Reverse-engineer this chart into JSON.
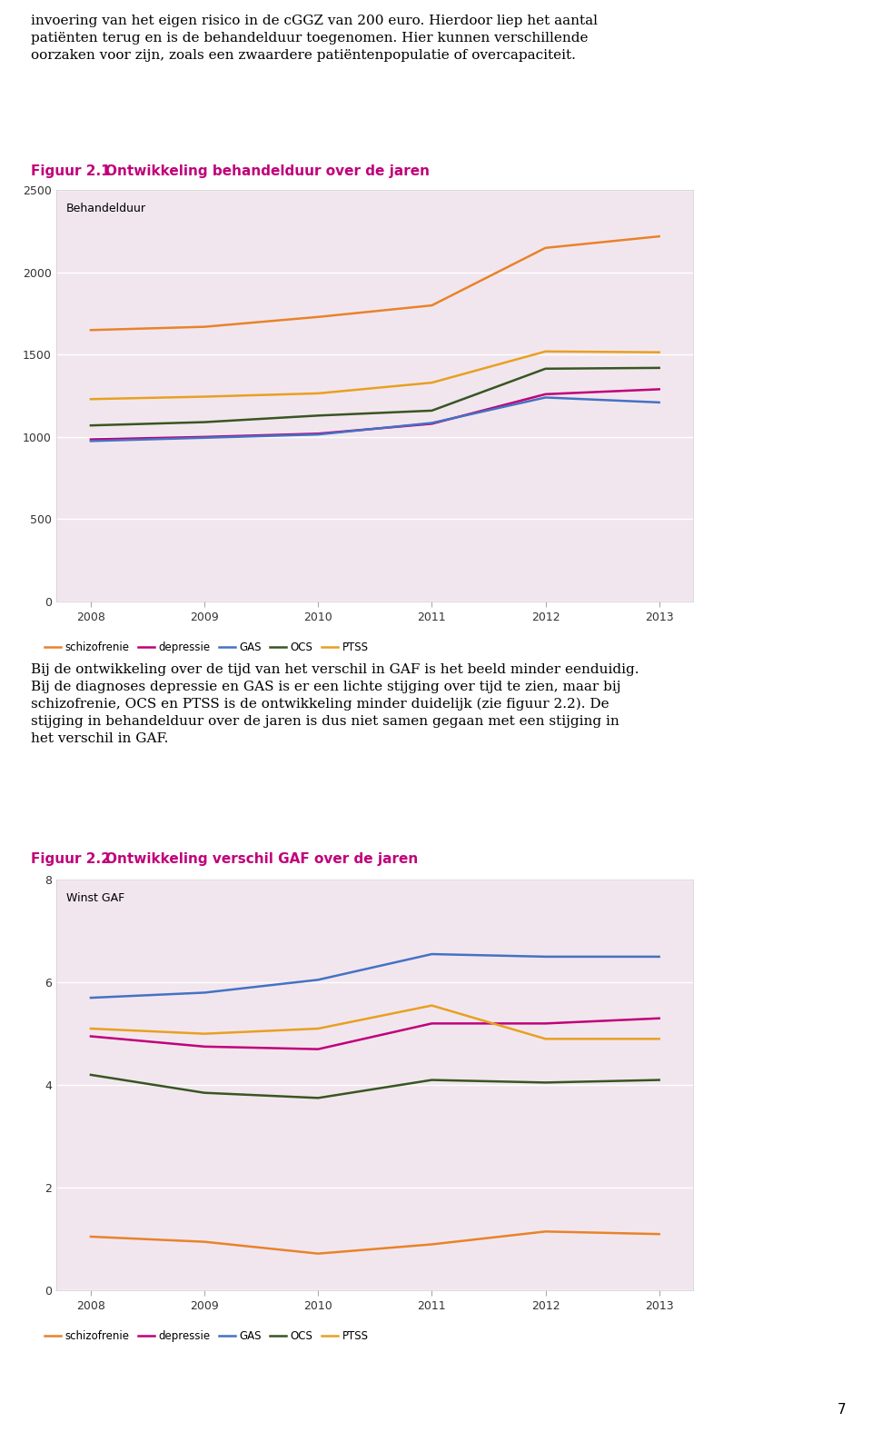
{
  "years": [
    2008,
    2009,
    2010,
    2011,
    2012,
    2013
  ],
  "chart1": {
    "title_num": "Figuur 2.1",
    "title_rest": "    Ontwikkeling behandelduur over de jaren",
    "ylabel": "Behandelduur",
    "ylim": [
      0,
      2500
    ],
    "yticks": [
      0,
      500,
      1000,
      1500,
      2000,
      2500
    ],
    "bg_color": "#f2e6ee",
    "series": {
      "schizofrenie": {
        "color": "#e8832a",
        "values": [
          1650,
          1670,
          1730,
          1800,
          2150,
          2220
        ]
      },
      "depressie": {
        "color": "#c0007a",
        "values": [
          985,
          1000,
          1020,
          1080,
          1260,
          1290
        ]
      },
      "GAS": {
        "color": "#4472c4",
        "values": [
          975,
          995,
          1015,
          1085,
          1240,
          1210
        ]
      },
      "OCS": {
        "color": "#375623",
        "values": [
          1070,
          1090,
          1130,
          1160,
          1415,
          1420
        ]
      },
      "PTSS": {
        "color": "#e8a020",
        "values": [
          1230,
          1245,
          1265,
          1330,
          1520,
          1515
        ]
      }
    }
  },
  "chart2": {
    "title_num": "Figuur 2.2",
    "title_rest": "    Ontwikkeling verschil GAF over de jaren",
    "ylabel": "Winst GAF",
    "ylim": [
      0,
      8
    ],
    "yticks": [
      0,
      2,
      4,
      6,
      8
    ],
    "bg_color": "#f2e6ee",
    "series": {
      "schizofrenie": {
        "color": "#e8832a",
        "values": [
          1.05,
          0.95,
          0.72,
          0.9,
          1.15,
          1.1
        ]
      },
      "depressie": {
        "color": "#c0007a",
        "values": [
          4.95,
          4.75,
          4.7,
          5.2,
          5.2,
          5.3
        ]
      },
      "GAS": {
        "color": "#4472c4",
        "values": [
          5.7,
          5.8,
          6.05,
          6.55,
          6.5,
          6.5
        ]
      },
      "OCS": {
        "color": "#375623",
        "values": [
          4.2,
          3.85,
          3.75,
          4.1,
          4.05,
          4.1
        ]
      },
      "PTSS": {
        "color": "#e8a020",
        "values": [
          5.1,
          5.0,
          5.1,
          5.55,
          4.9,
          4.9
        ]
      }
    }
  },
  "page_bg": "#ffffff",
  "text_color_title": "#c0007a",
  "text_body": "invoering van het eigen risico in de cGGZ van 200 euro. Hierdoor liep het aantal\npatiënten terug en is de behandelduur toegenomen. Hier kunnen verschillende\noorzaken voor zijn, zoals een zwaardere patiëntenpopulatie of overcapaciteit.",
  "text_mid": "Bij de ontwikkeling over de tijd van het verschil in GAF is het beeld minder eenduidig.\nBij de diagnoses depressie en GAS is er een lichte stijging over tijd te zien, maar bij\nschizofrenie, OCS en PTSS is de ontwikkeling minder duidelijk (zie figuur 2.2). De\nstijging in behandelduur over de jaren is dus niet samen gegaan met een stijging in\nhet verschil in GAF.",
  "page_number": "7",
  "legend_labels": [
    "schizofrenie",
    "depressie",
    "GAS",
    "OCS",
    "PTSS"
  ]
}
